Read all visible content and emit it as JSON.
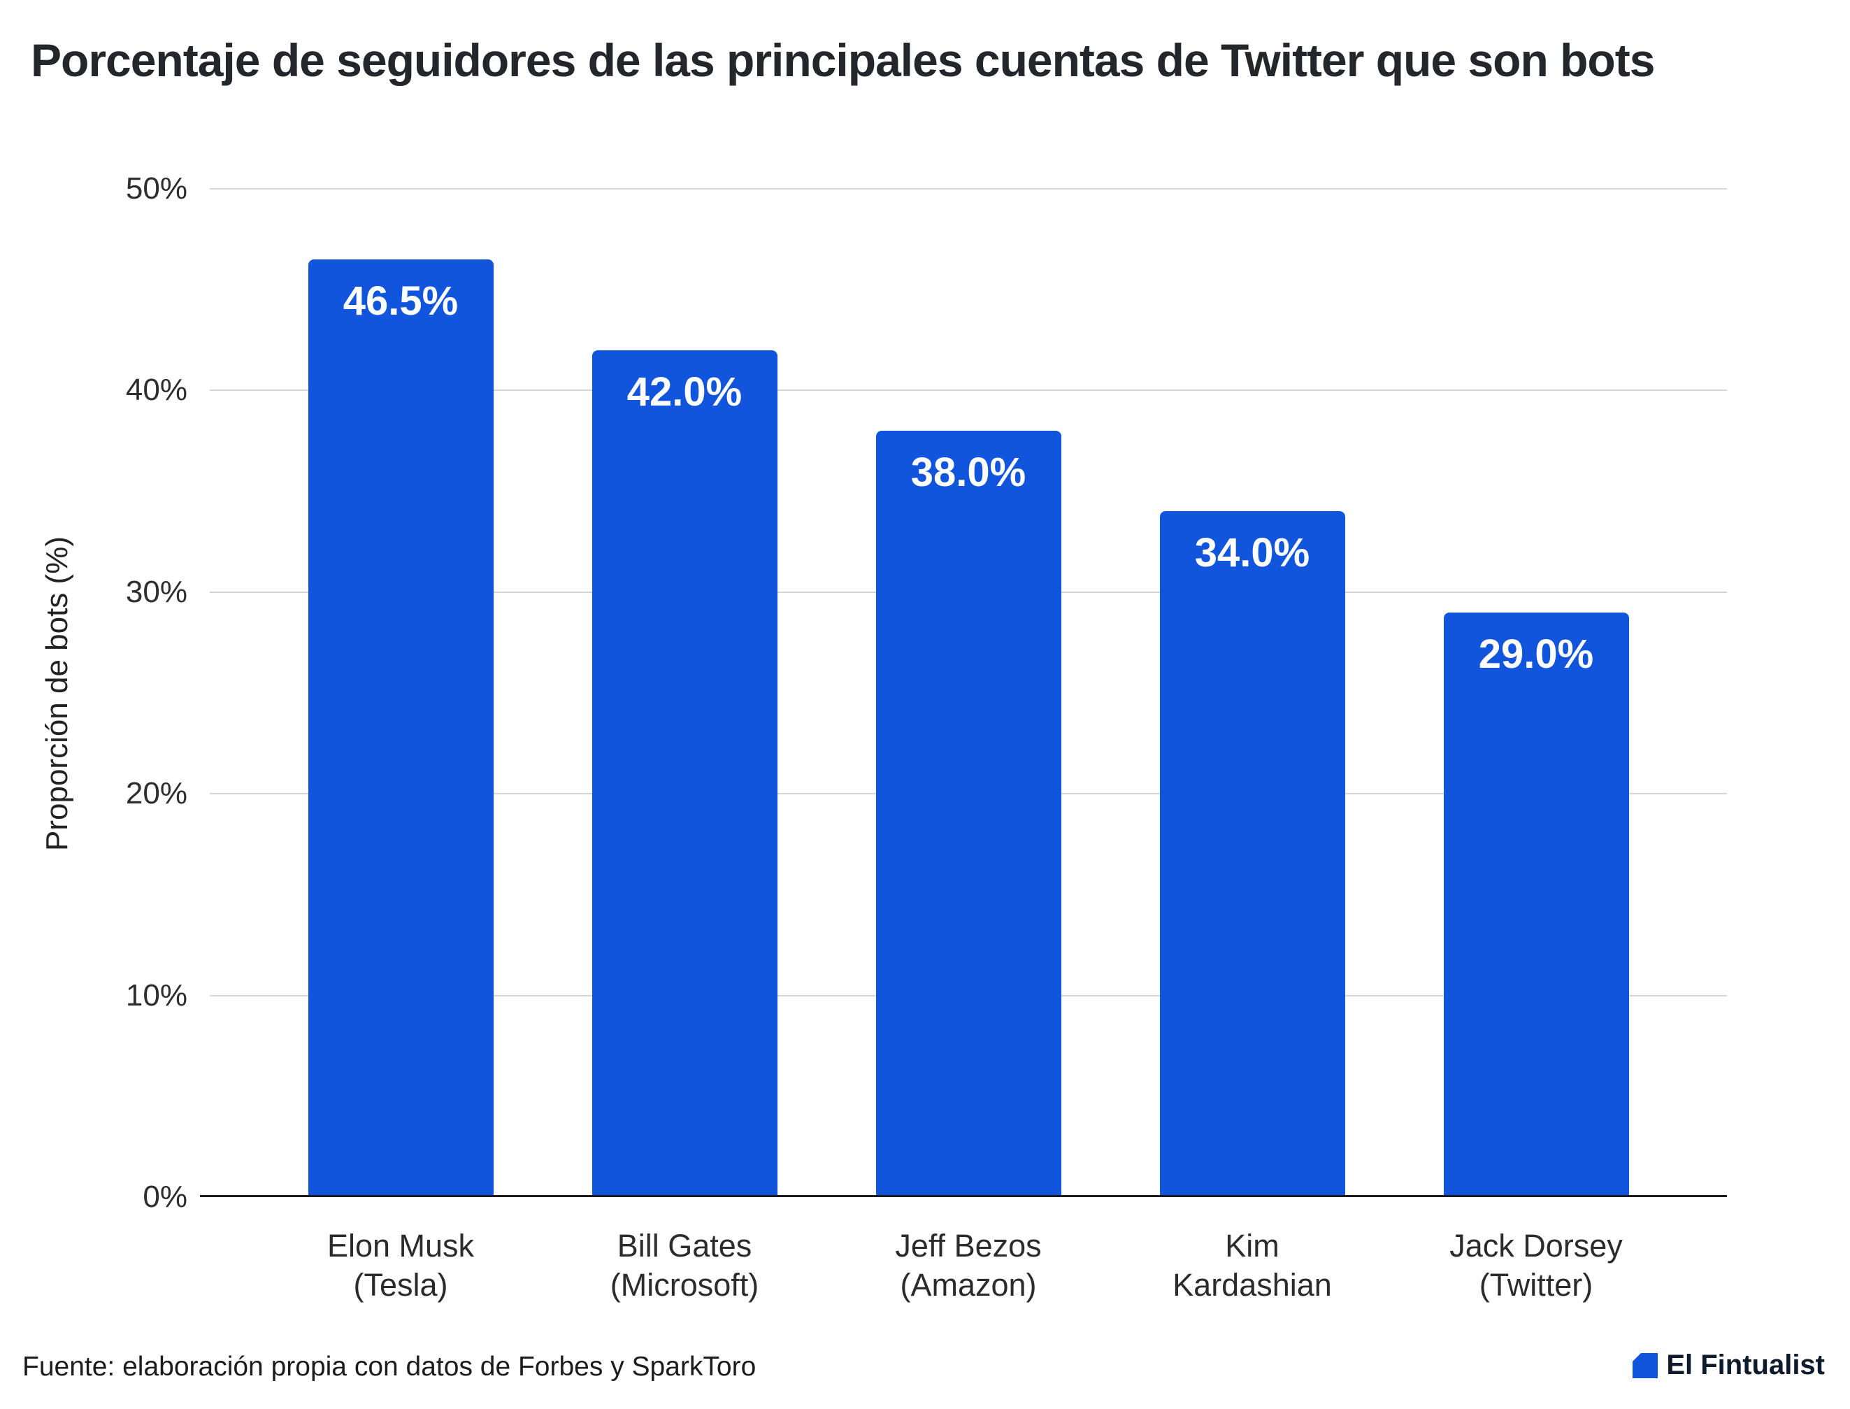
{
  "title": "Porcentaje de seguidores de las principales cuentas de Twitter que son bots",
  "footer": {
    "source": "Fuente: elaboración propia con datos de Forbes y SparkToro",
    "brand": "El Fintualist"
  },
  "colors": {
    "bar": "#1155dd",
    "grid": "#d5d5d5",
    "axis": "#1a1a1a",
    "value_label": "#ffffff",
    "brand_blue": "#1155dd"
  },
  "chart_data": {
    "type": "bar",
    "title": "Porcentaje de seguidores de las principales cuentas de Twitter que son bots",
    "xlabel": "",
    "ylabel": "Proporción de bots (%)",
    "ylim": [
      0,
      50
    ],
    "grid": true,
    "legend": "none",
    "yticks": [
      0,
      10,
      20,
      30,
      40,
      50
    ],
    "ytick_labels": [
      "0%",
      "10%",
      "20%",
      "30%",
      "40%",
      "50%"
    ],
    "categories": [
      "Elon Musk\n(Tesla)",
      "Bill Gates\n(Microsoft)",
      "Jeff Bezos\n(Amazon)",
      "Kim\nKardashian",
      "Jack Dorsey\n(Twitter)"
    ],
    "values": [
      46.5,
      42.0,
      38.0,
      34.0,
      29.0
    ],
    "value_labels": [
      "46.5%",
      "42.0%",
      "38.0%",
      "34.0%",
      "29.0%"
    ]
  }
}
